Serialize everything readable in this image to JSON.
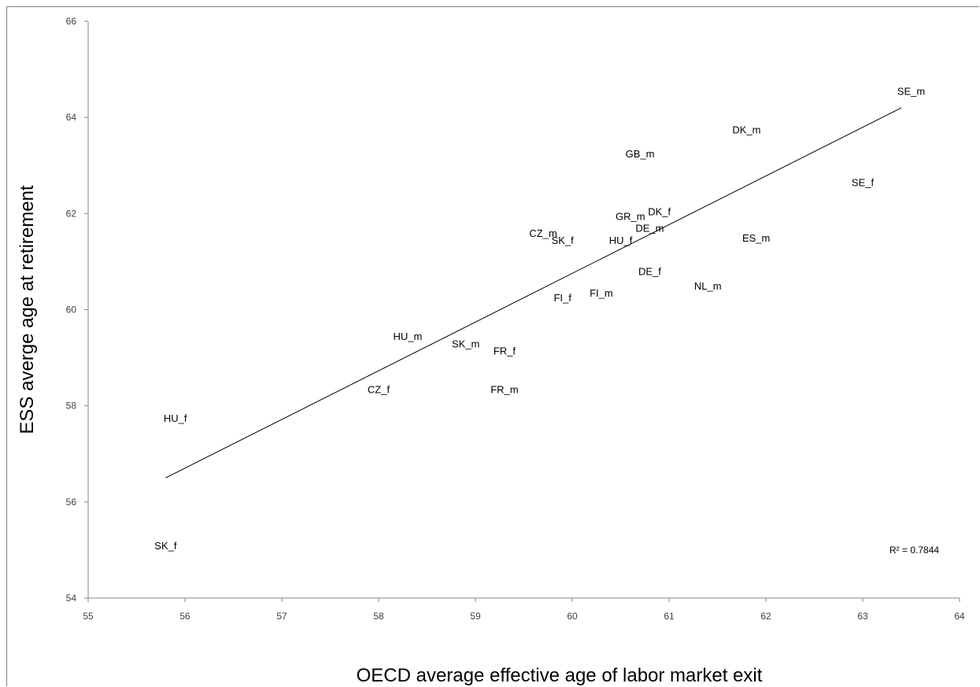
{
  "chart_data": {
    "type": "scatter",
    "title": "",
    "xlabel": "OECD average effective age of labor market exit",
    "ylabel": "ESS averge age at retirement",
    "xlim": [
      55,
      64
    ],
    "ylim": [
      54,
      66
    ],
    "xticks": [
      "55",
      "56",
      "57",
      "58",
      "59",
      "60",
      "61",
      "62",
      "63",
      "64"
    ],
    "yticks": [
      "54",
      "56",
      "58",
      "60",
      "62",
      "64",
      "66"
    ],
    "grid": false,
    "legend": "none",
    "points": [
      {
        "label": "SE_m",
        "x": 63.5,
        "y": 64.55
      },
      {
        "label": "DK_m",
        "x": 61.8,
        "y": 63.75
      },
      {
        "label": "GB_m",
        "x": 60.7,
        "y": 63.25
      },
      {
        "label": "SE_f",
        "x": 63.0,
        "y": 62.65
      },
      {
        "label": "DK_f",
        "x": 60.9,
        "y": 62.05
      },
      {
        "label": "GR_m",
        "x": 60.6,
        "y": 61.95
      },
      {
        "label": "DE_m",
        "x": 60.8,
        "y": 61.7
      },
      {
        "label": "CZ_m",
        "x": 59.7,
        "y": 61.6
      },
      {
        "label": "SK_f",
        "x": 59.9,
        "y": 61.45
      },
      {
        "label": "HU_f",
        "x": 60.5,
        "y": 61.45
      },
      {
        "label": "ES_m",
        "x": 61.9,
        "y": 61.5
      },
      {
        "label": "DE_f",
        "x": 60.8,
        "y": 60.8
      },
      {
        "label": "NL_m",
        "x": 61.4,
        "y": 60.5
      },
      {
        "label": "FI_m",
        "x": 60.3,
        "y": 60.35
      },
      {
        "label": "FI_f",
        "x": 59.9,
        "y": 60.25
      },
      {
        "label": "HU_m",
        "x": 58.3,
        "y": 59.45
      },
      {
        "label": "SK_m",
        "x": 58.9,
        "y": 59.3
      },
      {
        "label": "FR_f",
        "x": 59.3,
        "y": 59.15
      },
      {
        "label": "FR_m",
        "x": 59.3,
        "y": 58.35
      },
      {
        "label": "CZ_f",
        "x": 58.0,
        "y": 58.35
      },
      {
        "label": "HU_f",
        "x": 55.9,
        "y": 57.75
      },
      {
        "label": "SK_f",
        "x": 55.8,
        "y": 55.1
      }
    ],
    "trendline": {
      "x": [
        55.8,
        63.4
      ],
      "y": [
        56.5,
        64.2
      ]
    },
    "r2_label": "R² = 0.7844"
  }
}
